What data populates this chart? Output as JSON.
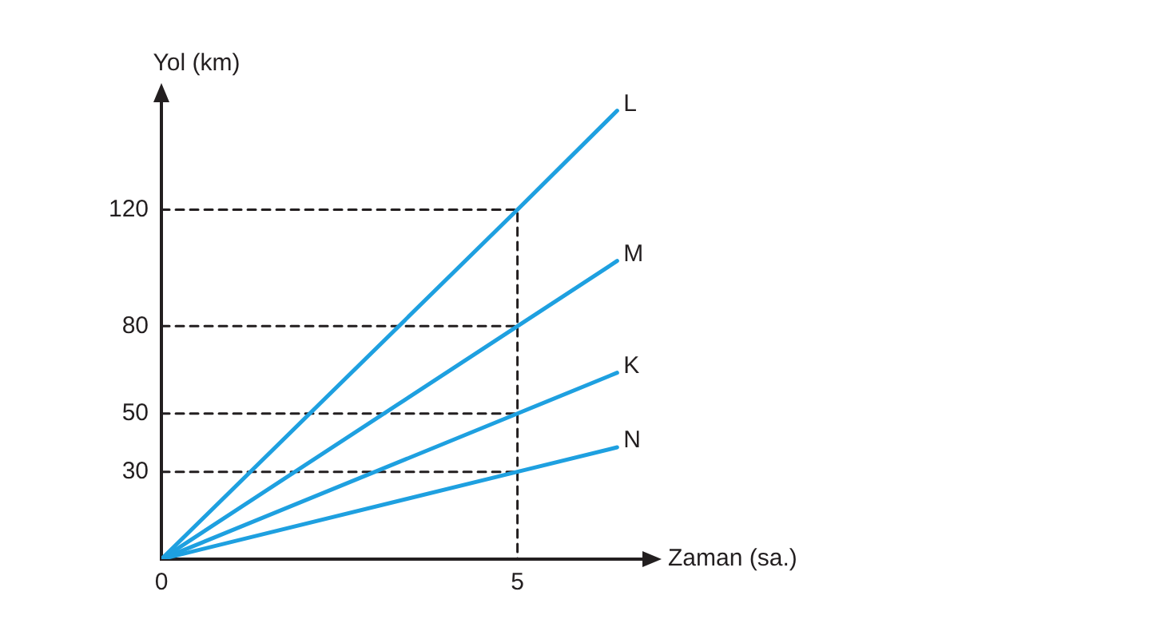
{
  "chart_data": {
    "type": "line",
    "xlabel": "Zaman (sa.)",
    "ylabel": "Yol (km)",
    "xlim": [
      0,
      6.8
    ],
    "ylim": [
      0,
      158
    ],
    "xticks": [
      0,
      5
    ],
    "yticks": [
      30,
      50,
      80,
      120
    ],
    "grid": false,
    "legend": false,
    "marker": "none",
    "series": [
      {
        "name": "L",
        "color": "#1ea0e0",
        "x": [
          0,
          5,
          6.4
        ],
        "values": [
          0,
          120,
          154
        ]
      },
      {
        "name": "M",
        "color": "#1ea0e0",
        "x": [
          0,
          5,
          6.4
        ],
        "values": [
          0,
          80,
          102.4
        ]
      },
      {
        "name": "K",
        "color": "#1ea0e0",
        "x": [
          0,
          5,
          6.4
        ],
        "values": [
          0,
          50,
          64
        ]
      },
      {
        "name": "N",
        "color": "#1ea0e0",
        "x": [
          0,
          5,
          6.4
        ],
        "values": [
          0,
          30,
          38.4
        ]
      },
      {
        "color": "#231f20",
        "line_style": "dashed",
        "x": [
          0,
          5,
          5
        ],
        "values": [
          120,
          120,
          0
        ]
      },
      {
        "color": "#231f20",
        "line_style": "dashed",
        "x": [
          0,
          5
        ],
        "values": [
          80,
          80
        ]
      },
      {
        "color": "#231f20",
        "line_style": "dashed",
        "x": [
          0,
          5
        ],
        "values": [
          50,
          50
        ]
      },
      {
        "color": "#231f20",
        "line_style": "dashed",
        "x": [
          0,
          5
        ],
        "values": [
          30,
          30
        ]
      }
    ]
  }
}
